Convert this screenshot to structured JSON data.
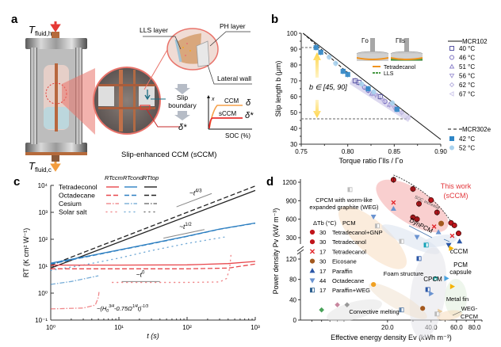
{
  "panels": {
    "a": {
      "letter": "a",
      "labels": {
        "t_hot": "T",
        "t_hot_sub": "fluid,h",
        "t_cold": "T",
        "t_cold_sub": "fluid,c",
        "lls_layer": "LLS layer",
        "ph_layer": "PH layer",
        "lateral_wall": "Lateral wall",
        "slip": "Slip",
        "boundary": "boundary",
        "delta_star": "δ*",
        "inset_axis_y": "x",
        "inset_axis_x": "SOC (%)",
        "ccm": "CCM",
        "sccm": "sCCM",
        "delta": "δ",
        "delta_star_inset": "δ*",
        "caption": "Slip-enhanced CCM (sCCM)"
      },
      "colors": {
        "ccm": "#f5a04a",
        "sccm": "#e8302e",
        "hot_arrow": "#e53935",
        "cold_arrow": "#f39c3c",
        "slip_arrow": "#1a6b80"
      }
    },
    "b": {
      "letter": "b"
    },
    "c": {
      "letter": "c"
    },
    "d": {
      "letter": "d"
    }
  },
  "chart_data": [
    {
      "id": "b",
      "type": "scatter",
      "title": "",
      "xlabel": "Torque ratio Γlls / Γo",
      "ylabel": "Slip length b (μm)",
      "xlim": [
        0.75,
        0.9
      ],
      "ylim": [
        30,
        100
      ],
      "xticks": [
        "0.75",
        "0.80",
        "0.85",
        "0.90"
      ],
      "xtick_values": [
        0.75,
        0.8,
        0.85,
        0.9
      ],
      "yticks": [
        "30",
        "40",
        "50",
        "60",
        "70",
        "80",
        "90",
        "100"
      ],
      "ytick_values": [
        30,
        40,
        50,
        60,
        70,
        80,
        90,
        100
      ],
      "fit_lines": [
        {
          "name": "MCR102",
          "style": "solid",
          "points": [
            [
              0.752,
              100
            ],
            [
              0.9,
              33
            ]
          ]
        },
        {
          "name": "MCR302e",
          "style": "dashed",
          "points": [
            [
              0.752,
              100
            ],
            [
              0.8,
              75
            ]
          ]
        }
      ],
      "reference_lines": [
        {
          "y": 91,
          "x_end": 0.766
        },
        {
          "y": 46,
          "x_end": 0.866
        }
      ],
      "annotation": "b ∈ [45, 90]",
      "inset_labels": {
        "gamma_o": "Γo",
        "gamma_lls": "Γlls",
        "tetradecanol": "Tetradecanol",
        "lls": "LLS"
      },
      "legend_group_1": "MCR102",
      "legend_group_2": "MCR302e",
      "series": [
        {
          "name": "40 °C",
          "marker": "square",
          "color": "#5b57a6",
          "group": "MCR102",
          "points": [
            [
              0.808,
              70
            ],
            [
              0.812,
              69
            ],
            [
              0.835,
              60
            ]
          ]
        },
        {
          "name": "46 °C",
          "marker": "circle",
          "color": "#7a6fc0",
          "group": "MCR102",
          "points": [
            [
              0.818,
              66
            ],
            [
              0.822,
              64
            ],
            [
              0.84,
              57
            ]
          ]
        },
        {
          "name": "51 °C",
          "marker": "triangle-up",
          "color": "#8f86cc",
          "group": "MCR102",
          "points": [
            [
              0.826,
              62
            ],
            [
              0.845,
              55
            ]
          ]
        },
        {
          "name": "56 °C",
          "marker": "triangle-down",
          "color": "#a49bd6",
          "group": "MCR102",
          "points": [
            [
              0.83,
              61
            ],
            [
              0.85,
              53
            ]
          ]
        },
        {
          "name": "62 °C",
          "marker": "diamond",
          "color": "#bab3e0",
          "group": "MCR102",
          "points": [
            [
              0.838,
              58
            ],
            [
              0.858,
              50
            ]
          ]
        },
        {
          "name": "67 °C",
          "marker": "triangle-left",
          "color": "#cdc7ea",
          "group": "MCR102",
          "points": [
            [
              0.846,
              55
            ],
            [
              0.865,
              47
            ]
          ]
        },
        {
          "name": "42 °C",
          "marker": "square",
          "color": "#2f86c6",
          "group": "MCR302e",
          "points": [
            [
              0.766,
              91
            ],
            [
              0.771,
              88
            ],
            [
              0.795,
              76
            ],
            [
              0.8,
              74
            ],
            [
              0.822,
              65
            ],
            [
              0.853,
              52
            ]
          ]
        },
        {
          "name": "52 °C",
          "marker": "circle",
          "color": "#a9d2ee",
          "group": "MCR302e",
          "points": [
            [
              0.78,
              85
            ],
            [
              0.787,
              81
            ],
            [
              0.815,
              68
            ],
            [
              0.828,
              63
            ],
            [
              0.848,
              56
            ]
          ]
        }
      ]
    },
    {
      "id": "c",
      "type": "line",
      "xlabel": "t (s)",
      "ylabel": "RT (K cm² W⁻¹)",
      "xscale": "log",
      "yscale": "log",
      "xlim": [
        1,
        1000
      ],
      "ylim": [
        0.1,
        10000
      ],
      "xticks": [
        "10⁰",
        "10¹",
        "10²",
        "10³"
      ],
      "xtick_values": [
        1,
        10,
        100,
        1000
      ],
      "yticks": [
        "10⁻¹",
        "10⁰",
        "10¹",
        "10²",
        "10³",
        "10⁴"
      ],
      "ytick_values": [
        0.1,
        1,
        10,
        100,
        1000,
        10000
      ],
      "legend_headers": [
        "RTccm",
        "RTcond",
        "RTtop"
      ],
      "legend_rows": [
        "Tetradeconol",
        "Octadecane",
        "Cesium",
        "Solar salt"
      ],
      "colors": {
        "ccm": "#e8474c",
        "cond": "#2d7fc1",
        "top": "#222222",
        "guide": "#888888"
      },
      "series": [
        {
          "name": "Tetradeconol RTtop",
          "kind": "top",
          "style": "solid",
          "points": [
            [
              1,
              8.5
            ],
            [
              1000,
              6500
            ]
          ]
        },
        {
          "name": "Octadecane RTtop",
          "kind": "top",
          "style": "dashed",
          "points": [
            [
              1,
              11
            ],
            [
              1000,
              9500
            ]
          ]
        },
        {
          "name": "Cesium RTtop",
          "kind": "top",
          "style": "dashdot",
          "points": [
            [
              1,
              11
            ],
            [
              1.8,
              18
            ]
          ]
        },
        {
          "name": "Tetradeconol RTcond",
          "kind": "cond",
          "style": "solid",
          "points": [
            [
              1,
              13
            ],
            [
              3,
              22
            ],
            [
              10,
              40
            ],
            [
              30,
              70
            ],
            [
              100,
              130
            ],
            [
              300,
              240
            ],
            [
              1000,
              400
            ]
          ]
        },
        {
          "name": "Octadecane RTcond",
          "kind": "cond",
          "style": "dashed",
          "points": [
            [
              1,
              12
            ],
            [
              3,
              21
            ],
            [
              10,
              39
            ],
            [
              30,
              68
            ],
            [
              100,
              128
            ],
            [
              300,
              235
            ],
            [
              1000,
              395
            ]
          ]
        },
        {
          "name": "Solar salt RTcond",
          "kind": "cond",
          "style": "dotted",
          "points": [
            [
              1,
              7
            ],
            [
              3,
              11
            ],
            [
              10,
              20
            ],
            [
              30,
              38
            ],
            [
              100,
              70
            ],
            [
              350,
              120
            ]
          ]
        },
        {
          "name": "Cesium RTcond",
          "kind": "cond",
          "style": "dashdot",
          "points": [
            [
              1,
              2.1
            ],
            [
              2,
              2.7
            ],
            [
              5,
              4.4
            ]
          ]
        },
        {
          "name": "Tetradeconol RTccm",
          "kind": "ccm",
          "style": "solid",
          "points": [
            [
              1,
              11
            ],
            [
              10,
              11
            ],
            [
              100,
              11.2
            ],
            [
              400,
              12.5
            ],
            [
              1000,
              15
            ]
          ]
        },
        {
          "name": "Octadecane RTccm",
          "kind": "ccm",
          "style": "dashed",
          "points": [
            [
              1,
              8
            ],
            [
              10,
              8
            ],
            [
              100,
              8
            ],
            [
              400,
              8.5
            ],
            [
              1000,
              12
            ]
          ]
        },
        {
          "name": "Solar salt RTccm",
          "kind": "ccm",
          "style": "dotted",
          "points": [
            [
              8,
              2.5
            ],
            [
              100,
              2.5
            ],
            [
              300,
              2.6
            ],
            [
              380,
              3.5
            ],
            [
              420,
              8
            ],
            [
              440,
              25
            ]
          ]
        },
        {
          "name": "Cesium RTccm",
          "kind": "ccm",
          "style": "dashdot",
          "points": [
            [
              1,
              0.26
            ],
            [
              3,
              0.28
            ],
            [
              4.5,
              0.36
            ],
            [
              5,
              0.7
            ],
            [
              5.1,
              1.1
            ]
          ]
        }
      ],
      "guides": [
        {
          "label": "~t",
          "exp": "4/3",
          "points": [
            [
              70,
              1600
            ],
            [
              230,
              5000
            ]
          ]
        },
        {
          "label": "~t",
          "exp": "1/2",
          "points": [
            [
              45,
              110
            ],
            [
              180,
              230
            ]
          ]
        },
        {
          "label": "~t",
          "exp": "0",
          "points": [
            [
              11,
              2.7
            ],
            [
              40,
              2.7
            ]
          ]
        }
      ],
      "formula_annotation": {
        "text": "~(H",
        "sub": "0",
        "sup1": "3/4",
        "mid": "-0.75Ω",
        "sup2": "1/4",
        "end": "t)",
        "sup3": "-1/3"
      }
    },
    {
      "id": "d",
      "type": "scatter",
      "xlabel": "Effective energy density Ev (kWh m⁻³)",
      "ylabel": "Power density Pv (kW m⁻³)",
      "xscale": "log",
      "xlim": [
        5,
        90
      ],
      "xticks": [
        "20.0",
        "40.0",
        "60.0",
        "80.0"
      ],
      "xtick_values": [
        20,
        40,
        60,
        80
      ],
      "yticks_lower": [
        "0",
        "40",
        "80",
        "120"
      ],
      "ytick_lower_values": [
        0,
        40,
        80,
        120
      ],
      "yticks_upper": [
        "300",
        "600",
        "900",
        "1200"
      ],
      "ytick_upper_values": [
        300,
        600,
        900,
        1200
      ],
      "axis_break": true,
      "legend_header": [
        "ΔTb (°C)",
        "PCM"
      ],
      "legend": [
        {
          "dt": "30",
          "pcm": "Tetradecanol+GNP",
          "marker": "circle",
          "color": "#c0141b"
        },
        {
          "dt": "30",
          "pcm": "Tetradecanol",
          "marker": "circle",
          "color": "#c0141b"
        },
        {
          "dt": "17",
          "pcm": "Tetradecanol",
          "marker": "cross",
          "color": "#e3262b"
        },
        {
          "dt": "30",
          "pcm": "Eicosane",
          "marker": "circle",
          "color": "#a3591f"
        },
        {
          "dt": "17",
          "pcm": "Paraffin",
          "marker": "triangle-up",
          "color": "#2a56a6"
        },
        {
          "dt": "44",
          "pcm": "Octadecane",
          "marker": "triangle-down",
          "color": "#6a93d0"
        },
        {
          "dt": "17",
          "pcm": "Paraffin+WEG",
          "marker": "half-square",
          "color": "#2c5f8f"
        }
      ],
      "region_labels": {
        "this_work": "This work",
        "this_work_2": "(sCCM)",
        "soc": "SOC increase",
        "cpcm_weg_1": "CPCM with worm-like",
        "cpcm_weg_2": "expanded graphite (WEG)",
        "dynpcm": "DynPCM",
        "cccm": "cCCM",
        "pcm_capsule_1": "PCM",
        "pcm_capsule_2": "capsule",
        "foam": "Foam structure",
        "cpcm": "CPCM",
        "metal_fin": "Metal fin",
        "weg_cpcm_1": "WEG-",
        "weg_cpcm_2": "CPCM",
        "convective": "Convective melting"
      },
      "this_work_color": "#e2363b",
      "this_work_points": [
        {
          "x": 22,
          "y": 1240,
          "type": "open"
        },
        {
          "x": 30,
          "y": 1090,
          "type": "open"
        },
        {
          "x": 33,
          "y": 850,
          "type": "open"
        },
        {
          "x": 30,
          "y": 630,
          "type": "open"
        },
        {
          "x": 32,
          "y": 600,
          "type": "open"
        },
        {
          "x": 40,
          "y": 910,
          "type": "filled"
        },
        {
          "x": 44,
          "y": 710,
          "type": "open"
        },
        {
          "x": 47,
          "y": 530,
          "type": "eicosane"
        },
        {
          "x": 55,
          "y": 540,
          "type": "filled"
        },
        {
          "x": 58,
          "y": 500,
          "type": "filled"
        },
        {
          "x": 62,
          "y": 370,
          "type": "filled"
        },
        {
          "x": 22,
          "y": 870,
          "type": "cross"
        },
        {
          "x": 42,
          "y": 480,
          "type": "cross"
        },
        {
          "x": 56,
          "y": 330,
          "type": "cross"
        }
      ],
      "other_points": [
        {
          "x": 11,
          "y": 1080,
          "marker": "half-square",
          "color": "#bbbbbb",
          "band": "upper"
        },
        {
          "x": 17,
          "y": 490,
          "marker": "half-square",
          "color": "#bbbbbb",
          "band": "upper"
        },
        {
          "x": 25,
          "y": 260,
          "marker": "half-square",
          "color": "#bbbbbb",
          "band": "upper"
        },
        {
          "x": 22,
          "y": 770,
          "marker": "triangle-up",
          "color": "#6a93d0",
          "band": "upper"
        },
        {
          "x": 16,
          "y": 640,
          "marker": "triangle-down",
          "color": "#6a93d0",
          "band": "upper"
        },
        {
          "x": 32,
          "y": 310,
          "marker": "triangle-down",
          "color": "#6a93d0",
          "band": "upper"
        },
        {
          "x": 45,
          "y": 390,
          "marker": "triangle-up",
          "color": "#6a93d0",
          "band": "upper"
        },
        {
          "x": 53,
          "y": 220,
          "marker": "triangle-down",
          "color": "#2a56a6",
          "band": "upper"
        },
        {
          "x": 63,
          "y": 260,
          "marker": "triangle-up",
          "color": "#2a56a6",
          "band": "upper"
        },
        {
          "x": 37,
          "y": 220,
          "marker": "half-square",
          "color": "#17a3b8",
          "band": "upper"
        },
        {
          "x": 55,
          "y": 185,
          "marker": "triangle-right",
          "color": "#f5b400",
          "band": "upper"
        },
        {
          "x": 33,
          "y": 130,
          "marker": "half-square",
          "color": "#2a56a6",
          "band": "lower"
        },
        {
          "x": 43,
          "y": 82,
          "marker": "capsule",
          "color": "#17a3a0",
          "band": "lower"
        },
        {
          "x": 51,
          "y": 82,
          "marker": "triangle-right",
          "color": "#4aa3df",
          "band": "lower"
        },
        {
          "x": 56,
          "y": 66,
          "marker": "triangle-right",
          "color": "#f5b400",
          "band": "lower"
        },
        {
          "x": 16,
          "y": 70,
          "marker": "circle",
          "color": "#f0a020",
          "band": "lower"
        },
        {
          "x": 38,
          "y": 60,
          "marker": "half-square",
          "color": "#2a56a6",
          "band": "lower"
        },
        {
          "x": 40,
          "y": 52,
          "marker": "triangle-right",
          "color": "#6a93d0",
          "band": "lower"
        },
        {
          "x": 25,
          "y": 20,
          "marker": "half-square",
          "color": "#5c7fa8",
          "band": "lower"
        },
        {
          "x": 35,
          "y": 23,
          "marker": "circle",
          "color": "#a3591f",
          "band": "lower"
        },
        {
          "x": 46,
          "y": 17,
          "marker": "triangle-right",
          "color": "#e8c99a",
          "band": "lower"
        },
        {
          "x": 44,
          "y": 12,
          "marker": "half-square",
          "color": "#bbbbbb",
          "band": "lower"
        },
        {
          "x": 7,
          "y": 20,
          "marker": "diamond",
          "color": "#4aa35a",
          "band": "lower"
        },
        {
          "x": 9,
          "y": 30,
          "marker": "diamond",
          "color": "#c8879f",
          "band": "lower"
        },
        {
          "x": 10.5,
          "y": 30,
          "marker": "diamond",
          "color": "#999999",
          "band": "lower"
        }
      ]
    }
  ]
}
